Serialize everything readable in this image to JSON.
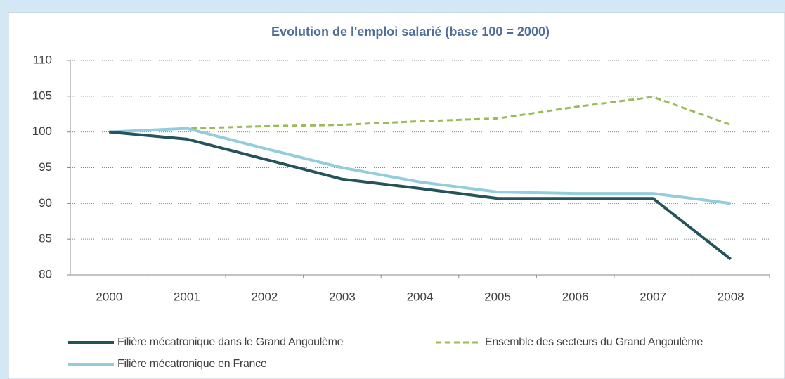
{
  "chart_data": {
    "type": "line",
    "title": "Evolution de l'emploi salarié (base 100 = 2000)",
    "categories": [
      "2000",
      "2001",
      "2002",
      "2003",
      "2004",
      "2005",
      "2006",
      "2007",
      "2008"
    ],
    "series": [
      {
        "name": "Filière mécatronique dans le Grand Angoulème",
        "color": "#24535c",
        "dash": false,
        "values": [
          100,
          99,
          96.2,
          93.4,
          92.1,
          90.7,
          90.7,
          90.7,
          82.2
        ]
      },
      {
        "name": "Ensemble des secteurs du Grand Angoulème",
        "color": "#9bbb59",
        "dash": true,
        "values": [
          100,
          100.5,
          100.8,
          101,
          101.5,
          101.9,
          103.5,
          104.9,
          101
        ]
      },
      {
        "name": "Filière mécatronique en France",
        "color": "#93cddd",
        "dash": false,
        "values": [
          100,
          100.5,
          97.7,
          95,
          93,
          91.6,
          91.4,
          91.4,
          90
        ]
      }
    ],
    "ylim": [
      80,
      110
    ],
    "yticks": [
      80,
      85,
      90,
      95,
      100,
      105,
      110
    ],
    "grid": true
  }
}
